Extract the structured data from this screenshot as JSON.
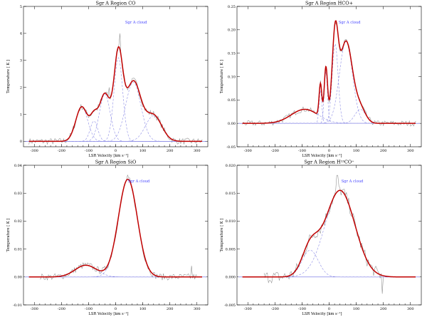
{
  "chart_data": [
    {
      "type": "line",
      "title": "Sgr A Region CO",
      "xlabel": "LSR Velocity [km s⁻¹]",
      "ylabel": "Temperature [ K ]",
      "annotation": "Sgr A cloud",
      "annotation_x": 35,
      "xlim": [
        -340,
        340
      ],
      "ylim": [
        -0.2,
        5
      ],
      "x_ticks": [
        -300,
        -200,
        -100,
        0,
        100,
        200,
        300
      ],
      "y_ticks": [
        0,
        1,
        2,
        3,
        4,
        5
      ],
      "y_tick_labels": [
        "0",
        "1",
        "2",
        "3",
        "4",
        "5"
      ],
      "data_range": [
        -320,
        320
      ],
      "components": [
        {
          "amp": 1.28,
          "center": -125,
          "sigma": 22
        },
        {
          "amp": 0.75,
          "center": -80,
          "sigma": 14
        },
        {
          "amp": 1.75,
          "center": -40,
          "sigma": 20
        },
        {
          "amp": 3.1,
          "center": 10,
          "sigma": 16
        },
        {
          "amp": 2.2,
          "center": 65,
          "sigma": 28
        },
        {
          "amp": 0.95,
          "center": 140,
          "sigma": 30
        }
      ],
      "noise": 0.12,
      "spikes": [
        {
          "x": 15,
          "y": 4.0
        },
        {
          "x": -25,
          "y": 2.0
        }
      ],
      "series": [
        {
          "values_desc": "observed spectrum"
        },
        {
          "values_desc": "gaussian components"
        },
        {
          "values_desc": "total fit"
        }
      ],
      "colors": {
        "observed": "#8c8c8c",
        "components": "#8f8fe6",
        "fit": "#c00000",
        "annotation": "#4a4aff"
      }
    },
    {
      "type": "line",
      "title": "Sgr A Region HCO+",
      "xlabel": "LSR Velocity [km s⁻¹]",
      "ylabel": "Temperature [ K ]",
      "annotation": "Sgr A cloud",
      "annotation_x": 35,
      "xlim": [
        -340,
        340
      ],
      "ylim": [
        -0.05,
        0.25
      ],
      "x_ticks": [
        -300,
        -200,
        -100,
        0,
        100,
        200,
        300
      ],
      "y_ticks": [
        -0.05,
        0,
        0.05,
        0.1,
        0.15,
        0.2,
        0.25
      ],
      "y_tick_labels": [
        "-0.05",
        "0.00",
        "0.05",
        "0.10",
        "0.15",
        "0.20",
        "0.25"
      ],
      "data_range": [
        -320,
        320
      ],
      "components": [
        {
          "amp": 0.03,
          "center": -90,
          "sigma": 50
        },
        {
          "amp": 0.07,
          "center": -32,
          "sigma": 5
        },
        {
          "amp": 0.11,
          "center": -12,
          "sigma": 6
        },
        {
          "amp": 0.17,
          "center": 22,
          "sigma": 11
        },
        {
          "amp": 0.175,
          "center": 62,
          "sigma": 24
        },
        {
          "amp": 0.03,
          "center": 115,
          "sigma": 20
        }
      ],
      "noise": 0.006,
      "spikes": [
        {
          "x": 20,
          "y": 0.21
        }
      ],
      "colors": {
        "observed": "#8c8c8c",
        "components": "#8f8fe6",
        "fit": "#c00000",
        "annotation": "#4a4aff"
      }
    },
    {
      "type": "line",
      "title": "Sgr A Region SiO",
      "xlabel": "LSR Velocity [km s⁻¹]",
      "ylabel": "Temperature [ K ]",
      "annotation": "Sgr A cloud",
      "annotation_x": 45,
      "xlim": [
        -340,
        340
      ],
      "ylim": [
        -0.01,
        0.04
      ],
      "x_ticks": [
        -300,
        -200,
        -100,
        0,
        100,
        200,
        300
      ],
      "y_ticks": [
        -0.01,
        0,
        0.01,
        0.02,
        0.03,
        0.04
      ],
      "y_tick_labels": [
        "-0.01",
        "0.00",
        "0.01",
        "0.02",
        "0.03",
        "0.04"
      ],
      "data_range": [
        -280,
        300
      ],
      "components": [
        {
          "amp": 0.0042,
          "center": -110,
          "sigma": 40
        },
        {
          "amp": 0.035,
          "center": 45,
          "sigma": 35
        }
      ],
      "noise": 0.0012,
      "spikes": [
        {
          "x": 45,
          "y": 0.0365
        },
        {
          "x": 280,
          "y": 0.004
        }
      ],
      "colors": {
        "observed": "#8c8c8c",
        "components": "#8f8fe6",
        "fit": "#c00000",
        "annotation": "#4a4aff"
      }
    },
    {
      "type": "line",
      "title": "Sgr A Region H¹³CO⁺",
      "xlabel": "LSR Velocity [km s⁻¹]",
      "ylabel": "Temperature [ K ]",
      "annotation": "Sgr A cloud",
      "annotation_x": 45,
      "xlim": [
        -340,
        340
      ],
      "ylim": [
        -0.005,
        0.02
      ],
      "x_ticks": [
        -300,
        -200,
        -100,
        0,
        100,
        200,
        300
      ],
      "y_ticks": [
        -0.005,
        0,
        0.005,
        0.01,
        0.015,
        0.02
      ],
      "y_tick_labels": [
        "-0.005",
        "0.000",
        "0.005",
        "0.010",
        "0.015",
        "0.020"
      ],
      "data_range": [
        -240,
        200
      ],
      "components": [
        {
          "amp": 0.0048,
          "center": -70,
          "sigma": 30
        },
        {
          "amp": 0.0155,
          "center": 40,
          "sigma": 55
        }
      ],
      "noise": 0.0011,
      "spikes": [
        {
          "x": 30,
          "y": 0.0182
        },
        {
          "x": 195,
          "y": -0.003
        }
      ],
      "colors": {
        "observed": "#8c8c8c",
        "components": "#8f8fe6",
        "fit": "#c00000",
        "annotation": "#4a4aff"
      }
    }
  ]
}
